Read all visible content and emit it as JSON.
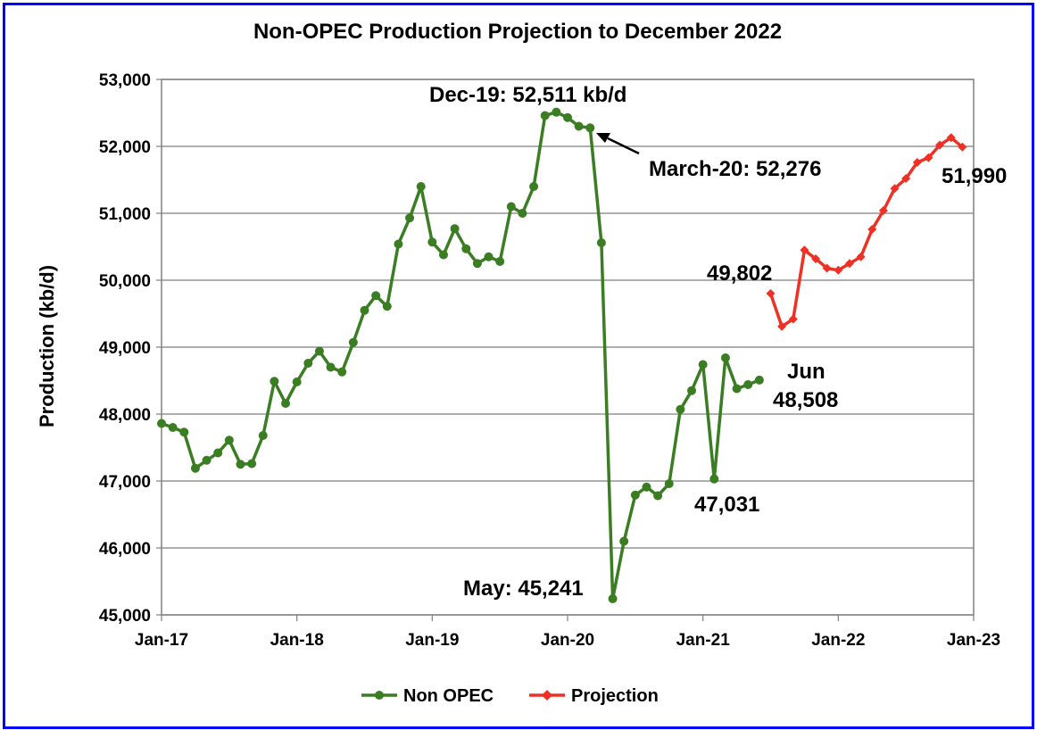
{
  "chart_data": {
    "type": "line",
    "title": "Non-OPEC Production Projection to December 2022",
    "ylabel": "Production (kb/d)",
    "xlabel": "",
    "ylim": [
      45000,
      53000
    ],
    "yticks": [
      45000,
      46000,
      47000,
      48000,
      49000,
      50000,
      51000,
      52000,
      53000
    ],
    "ytick_labels": [
      "45,000",
      "46,000",
      "47,000",
      "48,000",
      "49,000",
      "50,000",
      "51,000",
      "52,000",
      "53,000"
    ],
    "xlim": [
      "2017-01",
      "2023-01"
    ],
    "xticks": [
      "2017-01",
      "2018-01",
      "2019-01",
      "2020-01",
      "2021-01",
      "2022-01",
      "2023-01"
    ],
    "xtick_labels": [
      "Jan-17",
      "Jan-18",
      "Jan-19",
      "Jan-20",
      "Jan-21",
      "Jan-22",
      "Jan-23"
    ],
    "grid": true,
    "legend_position": "bottom",
    "series": [
      {
        "name": "Non OPEC",
        "color": "#3a7d22",
        "marker": "circle",
        "x": [
          "2017-01",
          "2017-02",
          "2017-03",
          "2017-04",
          "2017-05",
          "2017-06",
          "2017-07",
          "2017-08",
          "2017-09",
          "2017-10",
          "2017-11",
          "2017-12",
          "2018-01",
          "2018-02",
          "2018-03",
          "2018-04",
          "2018-05",
          "2018-06",
          "2018-07",
          "2018-08",
          "2018-09",
          "2018-10",
          "2018-11",
          "2018-12",
          "2019-01",
          "2019-02",
          "2019-03",
          "2019-04",
          "2019-05",
          "2019-06",
          "2019-07",
          "2019-08",
          "2019-09",
          "2019-10",
          "2019-11",
          "2019-12",
          "2020-01",
          "2020-02",
          "2020-03",
          "2020-04",
          "2020-05",
          "2020-06",
          "2020-07",
          "2020-08",
          "2020-09",
          "2020-10",
          "2020-11",
          "2020-12",
          "2021-01",
          "2021-02",
          "2021-03",
          "2021-04",
          "2021-05",
          "2021-06"
        ],
        "values": [
          47860,
          47800,
          47730,
          47190,
          47310,
          47420,
          47610,
          47250,
          47260,
          47680,
          48490,
          48160,
          48480,
          48760,
          48940,
          48700,
          48630,
          49070,
          49550,
          49770,
          49610,
          50540,
          50930,
          51400,
          50570,
          50380,
          50770,
          50470,
          50250,
          50350,
          50280,
          51100,
          51000,
          51400,
          52460,
          52511,
          52430,
          52300,
          52276,
          50560,
          45241,
          46100,
          46790,
          46910,
          46780,
          46960,
          48070,
          48350,
          48740,
          47031,
          48840,
          48380,
          48440,
          48508
        ]
      },
      {
        "name": "Projection",
        "color": "#ee3124",
        "marker": "diamond",
        "x": [
          "2021-07",
          "2021-08",
          "2021-09",
          "2021-10",
          "2021-11",
          "2021-12",
          "2022-01",
          "2022-02",
          "2022-03",
          "2022-04",
          "2022-05",
          "2022-06",
          "2022-07",
          "2022-08",
          "2022-09",
          "2022-10",
          "2022-11",
          "2022-12"
        ],
        "values": [
          49802,
          49310,
          49420,
          50450,
          50320,
          50180,
          50150,
          50250,
          50350,
          50760,
          51040,
          51370,
          51520,
          51760,
          51830,
          52020,
          52130,
          51990
        ]
      }
    ],
    "annotations": [
      {
        "text": "Dec-19: 52,511 kb/d"
      },
      {
        "text": "March-20: 52,276"
      },
      {
        "text": "49,802"
      },
      {
        "text": "51,990"
      },
      {
        "text": "Jun"
      },
      {
        "text": "48,508"
      },
      {
        "text": "47,031"
      },
      {
        "text": "May: 45,241"
      }
    ]
  }
}
